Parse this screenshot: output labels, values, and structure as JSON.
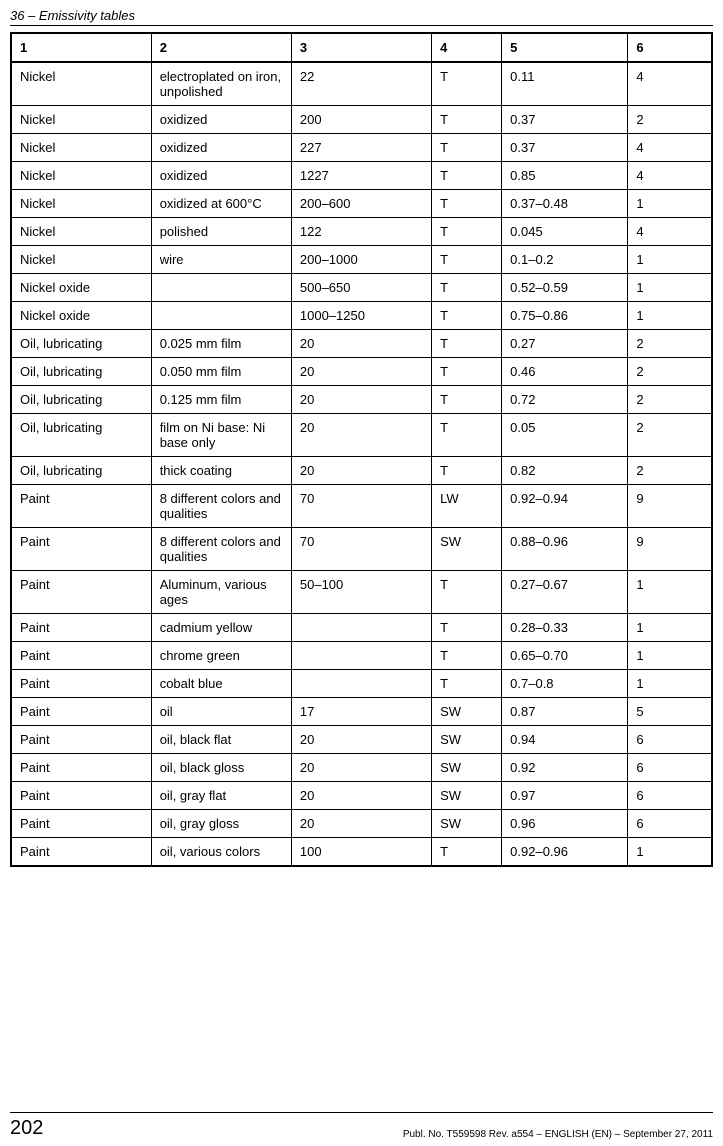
{
  "header": {
    "section_number": "36",
    "section_title": "Emissivity tables",
    "full": "36 – Emissivity tables"
  },
  "table": {
    "columns": [
      "1",
      "2",
      "3",
      "4",
      "5",
      "6"
    ],
    "rows": [
      [
        "Nickel",
        "electroplated on iron, unpolished",
        "22",
        "T",
        "0.11",
        "4"
      ],
      [
        "Nickel",
        "oxidized",
        "200",
        "T",
        "0.37",
        "2"
      ],
      [
        "Nickel",
        "oxidized",
        "227",
        "T",
        "0.37",
        "4"
      ],
      [
        "Nickel",
        "oxidized",
        "1227",
        "T",
        "0.85",
        "4"
      ],
      [
        "Nickel",
        "oxidized at 600°C",
        "200–600",
        "T",
        "0.37–0.48",
        "1"
      ],
      [
        "Nickel",
        "polished",
        "122",
        "T",
        "0.045",
        "4"
      ],
      [
        "Nickel",
        "wire",
        "200–1000",
        "T",
        "0.1–0.2",
        "1"
      ],
      [
        "Nickel oxide",
        "",
        "500–650",
        "T",
        "0.52–0.59",
        "1"
      ],
      [
        "Nickel oxide",
        "",
        "1000–1250",
        "T",
        "0.75–0.86",
        "1"
      ],
      [
        "Oil, lubricating",
        "0.025 mm film",
        "20",
        "T",
        "0.27",
        "2"
      ],
      [
        "Oil, lubricating",
        "0.050 mm film",
        "20",
        "T",
        "0.46",
        "2"
      ],
      [
        "Oil, lubricating",
        "0.125 mm film",
        "20",
        "T",
        "0.72",
        "2"
      ],
      [
        "Oil, lubricating",
        "film on Ni base: Ni base only",
        "20",
        "T",
        "0.05",
        "2"
      ],
      [
        "Oil, lubricating",
        "thick coating",
        "20",
        "T",
        "0.82",
        "2"
      ],
      [
        "Paint",
        "8 different colors and qualities",
        "70",
        "LW",
        "0.92–0.94",
        "9"
      ],
      [
        "Paint",
        "8 different colors and qualities",
        "70",
        "SW",
        "0.88–0.96",
        "9"
      ],
      [
        "Paint",
        "Aluminum, various ages",
        "50–100",
        "T",
        "0.27–0.67",
        "1"
      ],
      [
        "Paint",
        "cadmium yellow",
        "",
        "T",
        "0.28–0.33",
        "1"
      ],
      [
        "Paint",
        "chrome green",
        "",
        "T",
        "0.65–0.70",
        "1"
      ],
      [
        "Paint",
        "cobalt blue",
        "",
        "T",
        "0.7–0.8",
        "1"
      ],
      [
        "Paint",
        "oil",
        "17",
        "SW",
        "0.87",
        "5"
      ],
      [
        "Paint",
        "oil, black flat",
        "20",
        "SW",
        "0.94",
        "6"
      ],
      [
        "Paint",
        "oil, black gloss",
        "20",
        "SW",
        "0.92",
        "6"
      ],
      [
        "Paint",
        "oil, gray flat",
        "20",
        "SW",
        "0.97",
        "6"
      ],
      [
        "Paint",
        "oil, gray gloss",
        "20",
        "SW",
        "0.96",
        "6"
      ],
      [
        "Paint",
        "oil, various colors",
        "100",
        "T",
        "0.92–0.96",
        "1"
      ]
    ]
  },
  "footer": {
    "page_number": "202",
    "publication": "Publ. No. T559598 Rev. a554 – ENGLISH (EN) – September 27, 2011"
  }
}
